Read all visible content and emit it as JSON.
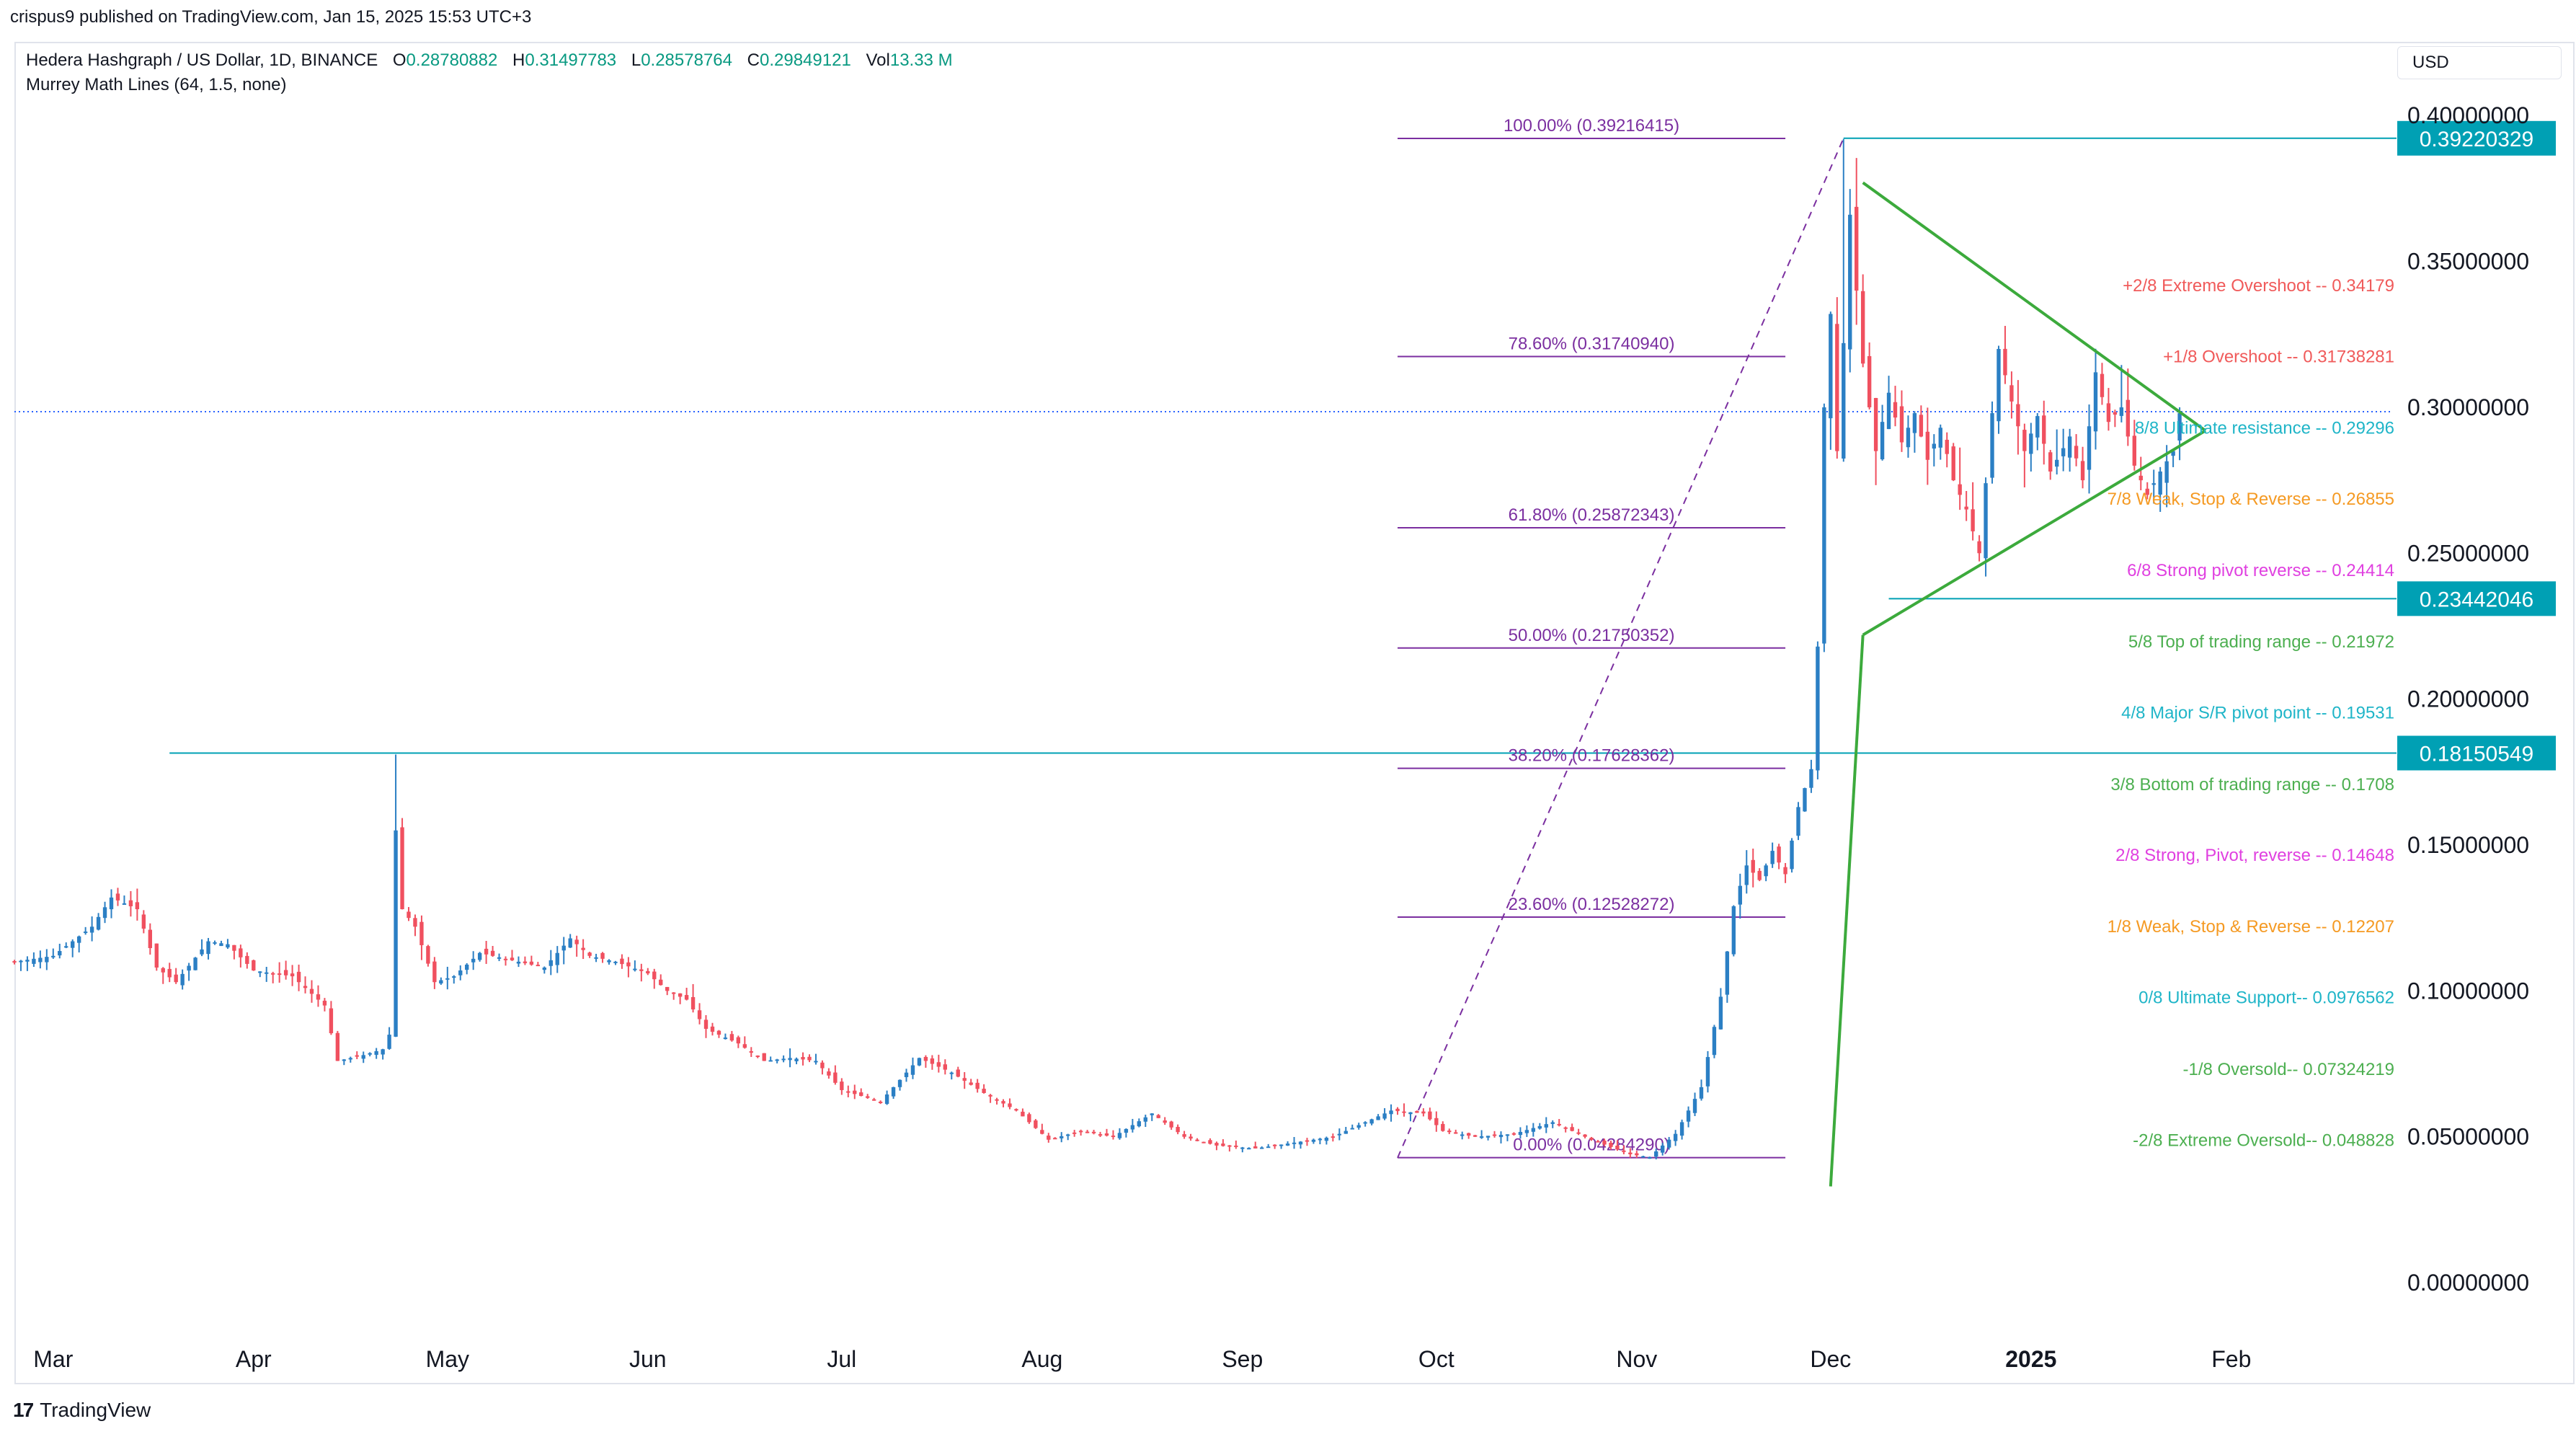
{
  "header": {
    "published": "crispus9 published on TradingView.com, Jan 15, 2025 15:53 UTC+3"
  },
  "legend": {
    "symbol": "Hedera Hashgraph / US Dollar, 1D, BINANCE",
    "o_label": "O",
    "o": "0.28780882",
    "h_label": "H",
    "h": "0.31497783",
    "l_label": "L",
    "l": "0.28578764",
    "c_label": "C",
    "c": "0.29849121",
    "vol_label": "Vol",
    "vol": "13.33 M",
    "indicator": "Murrey Math Lines (64, 1.5, none)"
  },
  "currency": "USD",
  "brand": "TradingView",
  "colors": {
    "up": "#2b7fc4",
    "down": "#f0505f",
    "fib": "#7b2fa0",
    "hline": "#00a0b4",
    "triangle": "#3caa3c",
    "price_dotted": "#2962ff"
  },
  "chart_data": {
    "type": "candlestick",
    "ylim": [
      -0.02,
      0.405
    ],
    "y_ticks": [
      "0.40000000",
      "0.35000000",
      "0.30000000",
      "0.25000000",
      "0.20000000",
      "0.15000000",
      "0.10000000",
      "0.05000000",
      "0.00000000"
    ],
    "y_tick_values": [
      0.4,
      0.35,
      0.3,
      0.25,
      0.2,
      0.15,
      0.1,
      0.05,
      0.0
    ],
    "x_range_days": [
      0,
      368
    ],
    "x_ticks": [
      {
        "label": "Mar",
        "day": 6
      },
      {
        "label": "Apr",
        "day": 37
      },
      {
        "label": "May",
        "day": 67
      },
      {
        "label": "Jun",
        "day": 98
      },
      {
        "label": "Jul",
        "day": 128
      },
      {
        "label": "Aug",
        "day": 159
      },
      {
        "label": "Sep",
        "day": 190
      },
      {
        "label": "Oct",
        "day": 220
      },
      {
        "label": "Nov",
        "day": 251
      },
      {
        "label": "Dec",
        "day": 281
      },
      {
        "label": "2025",
        "day": 312
      },
      {
        "label": "Feb",
        "day": 343
      }
    ],
    "price_path": [
      [
        0,
        0.11
      ],
      [
        6,
        0.112
      ],
      [
        12,
        0.122
      ],
      [
        15,
        0.132
      ],
      [
        19,
        0.128
      ],
      [
        22,
        0.108
      ],
      [
        25,
        0.103
      ],
      [
        30,
        0.117
      ],
      [
        33,
        0.116
      ],
      [
        37,
        0.107
      ],
      [
        43,
        0.105
      ],
      [
        48,
        0.095
      ],
      [
        50,
        0.076
      ],
      [
        54,
        0.078
      ],
      [
        57,
        0.08
      ],
      [
        58,
        0.085
      ],
      [
        59,
        0.155
      ],
      [
        60,
        0.128
      ],
      [
        62,
        0.122
      ],
      [
        65,
        0.103
      ],
      [
        68,
        0.105
      ],
      [
        72,
        0.113
      ],
      [
        76,
        0.111
      ],
      [
        82,
        0.108
      ],
      [
        86,
        0.118
      ],
      [
        89,
        0.112
      ],
      [
        93,
        0.11
      ],
      [
        98,
        0.106
      ],
      [
        101,
        0.1
      ],
      [
        104,
        0.097
      ],
      [
        107,
        0.087
      ],
      [
        112,
        0.082
      ],
      [
        116,
        0.076
      ],
      [
        120,
        0.077
      ],
      [
        124,
        0.076
      ],
      [
        128,
        0.066
      ],
      [
        134,
        0.062
      ],
      [
        140,
        0.077
      ],
      [
        145,
        0.072
      ],
      [
        150,
        0.065
      ],
      [
        155,
        0.059
      ],
      [
        160,
        0.049
      ],
      [
        165,
        0.052
      ],
      [
        170,
        0.05
      ],
      [
        176,
        0.058
      ],
      [
        181,
        0.05
      ],
      [
        186,
        0.047
      ],
      [
        192,
        0.046
      ],
      [
        198,
        0.048
      ],
      [
        204,
        0.05
      ],
      [
        208,
        0.054
      ],
      [
        213,
        0.059
      ],
      [
        218,
        0.058
      ],
      [
        221,
        0.052
      ],
      [
        226,
        0.05
      ],
      [
        232,
        0.051
      ],
      [
        238,
        0.055
      ],
      [
        244,
        0.049
      ],
      [
        250,
        0.044
      ],
      [
        253,
        0.043
      ],
      [
        257,
        0.051
      ],
      [
        261,
        0.067
      ],
      [
        264,
        0.098
      ],
      [
        266,
        0.129
      ],
      [
        268,
        0.143
      ],
      [
        270,
        0.138
      ],
      [
        272,
        0.148
      ],
      [
        274,
        0.14
      ],
      [
        276,
        0.163
      ],
      [
        278,
        0.176
      ],
      [
        279,
        0.218
      ],
      [
        280,
        0.3
      ],
      [
        281,
        0.332
      ],
      [
        282,
        0.285
      ],
      [
        283,
        0.322
      ],
      [
        284,
        0.366
      ],
      [
        285,
        0.34
      ],
      [
        286,
        0.315
      ],
      [
        288,
        0.285
      ],
      [
        290,
        0.305
      ],
      [
        292,
        0.288
      ],
      [
        294,
        0.298
      ],
      [
        296,
        0.282
      ],
      [
        298,
        0.293
      ],
      [
        300,
        0.275
      ],
      [
        302,
        0.265
      ],
      [
        304,
        0.25
      ],
      [
        306,
        0.298
      ],
      [
        307,
        0.32
      ],
      [
        309,
        0.302
      ],
      [
        311,
        0.285
      ],
      [
        313,
        0.297
      ],
      [
        315,
        0.278
      ],
      [
        318,
        0.29
      ],
      [
        320,
        0.275
      ],
      [
        322,
        0.312
      ],
      [
        324,
        0.295
      ],
      [
        326,
        0.3
      ],
      [
        328,
        0.28
      ],
      [
        330,
        0.27
      ],
      [
        332,
        0.278
      ],
      [
        334,
        0.285
      ],
      [
        335,
        0.298
      ]
    ],
    "spikes": [
      {
        "day": 59,
        "high": 0.181
      },
      {
        "day": 283,
        "high": 0.392
      }
    ],
    "fib_levels": [
      {
        "label": "100.00% (0.39216415)",
        "value": 0.39216415
      },
      {
        "label": "78.60% (0.31740940)",
        "value": 0.3174094
      },
      {
        "label": "61.80% (0.25872343)",
        "value": 0.25872343
      },
      {
        "label": "50.00% (0.21750352)",
        "value": 0.21750352
      },
      {
        "label": "38.20% (0.17628362)",
        "value": 0.17628362
      },
      {
        "label": "23.60% (0.12528272)",
        "value": 0.12528272
      },
      {
        "label": "0.00% (0.04284290)",
        "value": 0.0428429
      }
    ],
    "fib_day_range": [
      214,
      274
    ],
    "fib_label_day": 244,
    "murrey_lines": [
      {
        "label": "+2/8 Extreme Overshoot --  0.34179",
        "value": 0.3418,
        "color": "#f05a5a"
      },
      {
        "label": "+1/8 Overshoot --  0.31738281",
        "value": 0.3174,
        "color": "#f05a5a"
      },
      {
        "label": "8/8 Ultimate resistance --  0.29296",
        "value": 0.293,
        "color": "#1fb5c8"
      },
      {
        "label": "7/8 Weak, Stop & Reverse --  0.26855",
        "value": 0.2686,
        "color": "#f59a23"
      },
      {
        "label": "6/8 Strong pivot reverse --  0.24414",
        "value": 0.2441,
        "color": "#e040e0"
      },
      {
        "label": "5/8 Top of trading range --  0.21972",
        "value": 0.2197,
        "color": "#4caf50"
      },
      {
        "label": "4/8 Major S/R pivot point --  0.19531",
        "value": 0.1953,
        "color": "#1fb5c8"
      },
      {
        "label": "3/8 Bottom of trading range --  0.1708",
        "value": 0.1708,
        "color": "#4caf50"
      },
      {
        "label": "2/8 Strong, Pivot, reverse --  0.14648",
        "value": 0.1465,
        "color": "#e040e0"
      },
      {
        "label": "1/8 Weak, Stop & Reverse --  0.12207",
        "value": 0.1221,
        "color": "#f59a23"
      },
      {
        "label": "0/8 Ultimate Support--  0.0976562",
        "value": 0.0977,
        "color": "#1fb5c8"
      },
      {
        "label": "-1/8 Oversold--  0.07324219",
        "value": 0.0732,
        "color": "#4caf50"
      },
      {
        "label": "-2/8 Extreme Oversold--  0.048828",
        "value": 0.0488,
        "color": "#4caf50"
      }
    ],
    "horizontal_lines": [
      {
        "label": "0.39220329",
        "value": 0.39220329,
        "from_day": 283
      },
      {
        "label": "0.23442046",
        "value": 0.23442046,
        "from_day": 290
      },
      {
        "label": "0.18150549",
        "value": 0.18150549,
        "from_day": 24
      }
    ],
    "current_price_line": 0.2985,
    "triangle": {
      "upper": [
        [
          286,
          0.377
        ],
        [
          339,
          0.292
        ]
      ],
      "lower": [
        [
          286,
          0.222
        ],
        [
          339,
          0.292
        ]
      ],
      "extension": [
        [
          281,
          0.033
        ],
        [
          286,
          0.222
        ]
      ]
    },
    "fib_diagonal": [
      [
        214,
        0.0428
      ],
      [
        283,
        0.3922
      ]
    ]
  }
}
